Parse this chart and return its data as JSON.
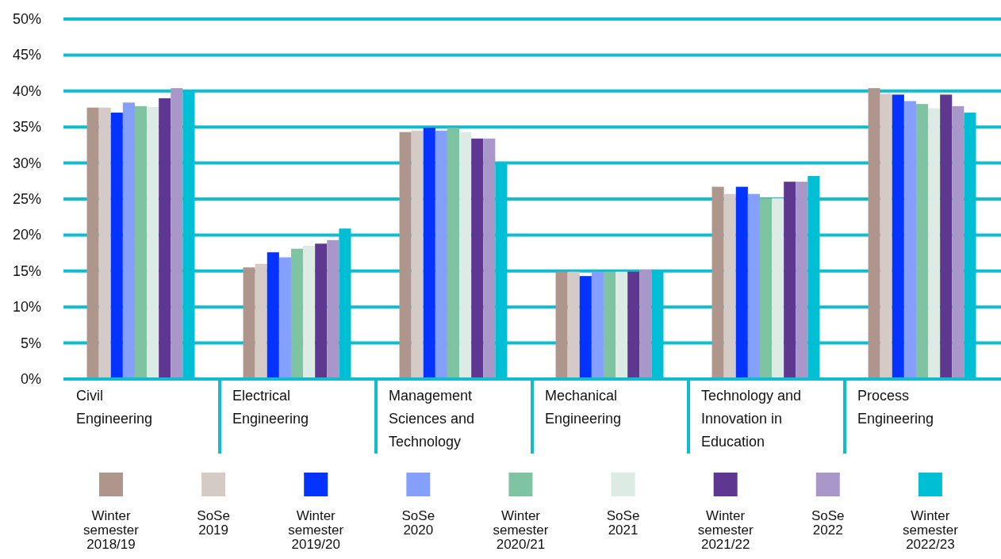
{
  "chart_data": {
    "type": "bar",
    "categories": [
      "Civil Engineering",
      "Electrical Engineering",
      "Management Sciences and Technology",
      "Mechanical Engineering",
      "Technology and Innovation in Education",
      "Process Engineering"
    ],
    "series": [
      {
        "name": "Winter semester 2018/19",
        "color": "#ae968c",
        "values": [
          37.7,
          15.5,
          34.3,
          14.9,
          26.7,
          40.4
        ]
      },
      {
        "name": "SoSe 2019",
        "color": "#d5cbc6",
        "values": [
          37.7,
          16.0,
          34.5,
          14.9,
          25.7,
          39.6
        ]
      },
      {
        "name": "Winter semester 2019/20",
        "color": "#0433ff",
        "values": [
          37.0,
          17.6,
          34.9,
          14.3,
          26.7,
          39.5
        ]
      },
      {
        "name": "SoSe 2020",
        "color": "#84a0fc",
        "values": [
          38.4,
          16.9,
          34.5,
          14.9,
          25.7,
          38.6
        ]
      },
      {
        "name": "Winter semester 2020/21",
        "color": "#7fc4a2",
        "values": [
          37.9,
          18.1,
          34.9,
          14.9,
          25.1,
          38.2
        ]
      },
      {
        "name": "SoSe 2021",
        "color": "#dcebe3",
        "values": [
          37.8,
          18.5,
          34.3,
          14.9,
          25.1,
          37.6
        ]
      },
      {
        "name": "Winter semester 2021/22",
        "color": "#5e3790",
        "values": [
          39.0,
          18.8,
          33.4,
          14.9,
          27.4,
          39.5
        ]
      },
      {
        "name": "SoSe 2022",
        "color": "#a997c9",
        "values": [
          40.4,
          19.3,
          33.4,
          15.2,
          27.4,
          37.9
        ]
      },
      {
        "name": "Winter semester 2022/23",
        "color": "#00bed3",
        "values": [
          40.0,
          20.9,
          30.0,
          15.0,
          28.2,
          37.0
        ]
      }
    ],
    "ylim": [
      0,
      50
    ],
    "yticks": [
      {
        "value": 0,
        "label": "0%"
      },
      {
        "value": 5,
        "label": "5%"
      },
      {
        "value": 10,
        "label": "10%"
      },
      {
        "value": 15,
        "label": "15%"
      },
      {
        "value": 20,
        "label": "20%"
      },
      {
        "value": 25,
        "label": "25%"
      },
      {
        "value": 30,
        "label": "30%"
      },
      {
        "value": 35,
        "label": "35%"
      },
      {
        "value": 40,
        "label": "40%"
      },
      {
        "value": 45,
        "label": "45%"
      },
      {
        "value": 50,
        "label": "50%"
      }
    ],
    "grid": "y",
    "legend": "bottom"
  }
}
